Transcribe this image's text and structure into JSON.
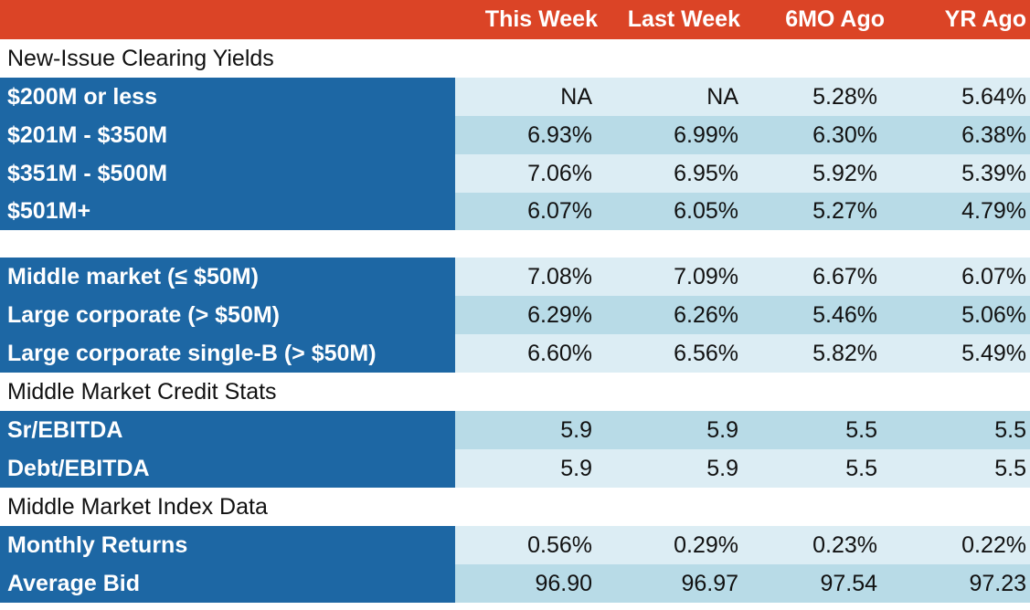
{
  "header": [
    "",
    "This Week",
    "Last Week",
    "6MO Ago",
    "YR Ago"
  ],
  "sections": [
    {
      "title": "New-Issue Clearing Yields",
      "rows": [
        {
          "label": "$200M or less",
          "values": [
            "NA",
            "NA",
            "5.28%",
            "5.64%"
          ]
        },
        {
          "label": "$201M - $350M",
          "values": [
            "6.93%",
            "6.99%",
            "6.30%",
            "6.38%"
          ]
        },
        {
          "label": "$351M - $500M",
          "values": [
            "7.06%",
            "6.95%",
            "5.92%",
            "5.39%"
          ]
        },
        {
          "label": "$501M+",
          "values": [
            "6.07%",
            "6.05%",
            "5.27%",
            "4.79%"
          ]
        }
      ]
    },
    {
      "title": "",
      "rows": [
        {
          "label": "Middle market (≤ $50M)",
          "values": [
            "7.08%",
            "7.09%",
            "6.67%",
            "6.07%"
          ]
        },
        {
          "label": "Large corporate (> $50M)",
          "values": [
            "6.29%",
            "6.26%",
            "5.46%",
            "5.06%"
          ]
        },
        {
          "label": "Large corporate single-B (> $50M)",
          "values": [
            "6.60%",
            "6.56%",
            "5.82%",
            "5.49%"
          ]
        }
      ]
    },
    {
      "title": "Middle Market Credit Stats",
      "rows": [
        {
          "label": "Sr/EBITDA",
          "values": [
            "5.9",
            "5.9",
            "5.5",
            "5.5"
          ]
        },
        {
          "label": "Debt/EBITDA",
          "values": [
            "5.9",
            "5.9",
            "5.5",
            "5.5"
          ]
        }
      ]
    },
    {
      "title": "Middle Market Index Data",
      "rows": [
        {
          "label": "Monthly Returns",
          "values": [
            "0.56%",
            "0.29%",
            "0.23%",
            "0.22%"
          ]
        },
        {
          "label": "Average Bid",
          "values": [
            "96.90",
            "96.97",
            "97.54",
            "97.23"
          ]
        }
      ]
    }
  ],
  "colors": {
    "header": "#db4426",
    "label": "#1d67a4",
    "row_light": "#dcedf4",
    "row_dark": "#b8dbe7"
  }
}
